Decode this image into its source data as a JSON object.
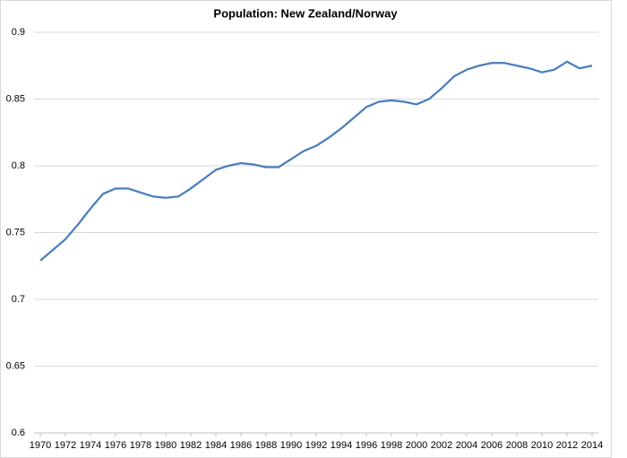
{
  "chart_data": {
    "type": "line",
    "title": "Population: New Zealand/Norway",
    "x": [
      1970,
      1971,
      1972,
      1973,
      1974,
      1975,
      1976,
      1977,
      1978,
      1979,
      1980,
      1981,
      1982,
      1983,
      1984,
      1985,
      1986,
      1987,
      1988,
      1989,
      1990,
      1991,
      1992,
      1993,
      1994,
      1995,
      1996,
      1997,
      1998,
      1999,
      2000,
      2001,
      2002,
      2003,
      2004,
      2005,
      2006,
      2007,
      2008,
      2009,
      2010,
      2011,
      2012,
      2013,
      2014
    ],
    "series": [
      {
        "name": "New Zealand/Norway",
        "color": "#4a7ebb",
        "values": [
          0.729,
          0.737,
          0.745,
          0.756,
          0.768,
          0.779,
          0.783,
          0.783,
          0.78,
          0.777,
          0.776,
          0.777,
          0.783,
          0.79,
          0.797,
          0.8,
          0.802,
          0.801,
          0.799,
          0.799,
          0.805,
          0.811,
          0.815,
          0.821,
          0.828,
          0.836,
          0.844,
          0.848,
          0.849,
          0.848,
          0.846,
          0.85,
          0.858,
          0.867,
          0.872,
          0.875,
          0.877,
          0.877,
          0.875,
          0.873,
          0.87,
          0.872,
          0.878,
          0.873,
          0.875
        ]
      }
    ],
    "xlim": [
      1969.5,
      2014.5
    ],
    "xticks": [
      1970,
      1972,
      1974,
      1976,
      1978,
      1980,
      1982,
      1984,
      1986,
      1988,
      1990,
      1992,
      1994,
      1996,
      1998,
      2000,
      2002,
      2004,
      2006,
      2008,
      2010,
      2012,
      2014
    ],
    "ylim": [
      0.6,
      0.9
    ],
    "yticks": [
      0.6,
      0.65,
      0.7,
      0.75,
      0.8,
      0.85,
      0.9
    ],
    "grid": true
  }
}
